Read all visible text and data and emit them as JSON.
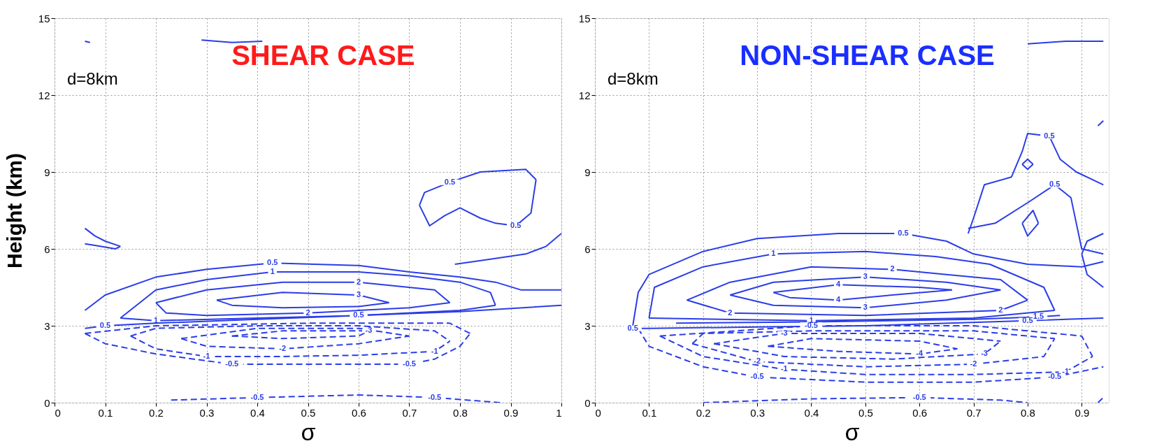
{
  "chart_data": [
    {
      "type": "line",
      "title": "SHEAR CASE",
      "xlabel": "σ",
      "ylabel": "Height (km)",
      "xlim": [
        0,
        1
      ],
      "ylim": [
        0,
        15
      ],
      "xticks": [
        0,
        0.1,
        0.2,
        0.3,
        0.4,
        0.5,
        0.6,
        0.7,
        0.8,
        0.9,
        1
      ],
      "yticks": [
        0,
        3,
        6,
        9,
        12,
        15
      ],
      "grid": true,
      "annotations": [
        "d=8km",
        {
          "text": "0.5",
          "x": 0.78,
          "y": 8.6
        },
        {
          "text": "0.5",
          "x": 0.91,
          "y": 6.9
        },
        {
          "text": "0.5",
          "x": 0.43,
          "y": 5.45
        },
        {
          "text": "1",
          "x": 0.43,
          "y": 5.1
        },
        {
          "text": "2",
          "x": 0.6,
          "y": 4.7
        },
        {
          "text": "3",
          "x": 0.6,
          "y": 4.2
        },
        {
          "text": "2",
          "x": 0.5,
          "y": 3.5
        },
        {
          "text": "0.5",
          "x": 0.1,
          "y": 3.0
        },
        {
          "text": "1",
          "x": 0.2,
          "y": 3.2
        },
        {
          "text": "0.5",
          "x": 0.6,
          "y": 3.4
        },
        {
          "text": "-3",
          "x": 0.62,
          "y": 2.8
        },
        {
          "text": "-2",
          "x": 0.45,
          "y": 2.1
        },
        {
          "text": "-1",
          "x": 0.3,
          "y": 1.8
        },
        {
          "text": "-1",
          "x": 0.75,
          "y": 2.0
        },
        {
          "text": "-0.5",
          "x": 0.35,
          "y": 1.5
        },
        {
          "text": "-0.5",
          "x": 0.7,
          "y": 1.5
        },
        {
          "text": "-0.5",
          "x": 0.4,
          "y": 0.2
        },
        {
          "text": "-0.5",
          "x": 0.75,
          "y": 0.2
        }
      ],
      "series": [
        {
          "color": "#2b3de8",
          "line_style": "solid",
          "x": [
            0.72,
            0.73,
            0.78,
            0.84,
            0.93,
            0.95
          ],
          "values": [
            7.7,
            8.2,
            8.6,
            9.0,
            9.1,
            8.7
          ]
        },
        {
          "color": "#2b3de8",
          "line_style": "solid",
          "x": [
            0.72,
            0.74,
            0.77,
            0.8,
            0.84,
            0.87,
            0.91,
            0.94,
            0.95
          ],
          "values": [
            7.7,
            6.9,
            7.3,
            7.6,
            7.2,
            7.0,
            6.9,
            7.4,
            8.7
          ]
        },
        {
          "color": "#2b3de8",
          "line_style": "solid",
          "x": [
            0.06,
            0.08,
            0.1,
            0.13
          ],
          "values": [
            6.8,
            6.5,
            6.3,
            6.1
          ]
        },
        {
          "color": "#2b3de8",
          "line_style": "solid",
          "x": [
            0.06,
            0.09,
            0.12,
            0.13
          ],
          "values": [
            6.2,
            6.1,
            6.0,
            6.1
          ]
        },
        {
          "color": "#2b3de8",
          "line_style": "solid",
          "x": [
            0.29,
            0.35,
            0.41
          ],
          "values": [
            14.15,
            14.05,
            14.1
          ]
        },
        {
          "color": "#2b3de8",
          "line_style": "solid",
          "x": [
            0.06,
            0.07
          ],
          "values": [
            14.1,
            14.05
          ]
        },
        {
          "color": "#2b3de8",
          "line_style": "solid",
          "x": [
            0.79,
            0.86,
            0.93,
            0.97,
            1.0
          ],
          "values": [
            5.4,
            5.6,
            5.8,
            6.1,
            6.6
          ]
        },
        {
          "color": "#2b3de8",
          "line_style": "solid",
          "x": [
            0.06,
            0.1,
            0.2,
            0.3,
            0.43,
            0.6,
            0.7,
            0.8,
            0.87,
            0.92,
            1.0
          ],
          "values": [
            3.6,
            4.2,
            4.9,
            5.2,
            5.45,
            5.35,
            5.1,
            4.9,
            4.7,
            4.4,
            4.4
          ]
        },
        {
          "color": "#2b3de8",
          "line_style": "solid",
          "x": [
            0.06,
            0.1,
            0.2,
            0.4,
            0.6,
            0.8,
            1.0
          ],
          "values": [
            2.9,
            3.0,
            3.1,
            3.25,
            3.4,
            3.55,
            3.8
          ]
        },
        {
          "color": "#2b3de8",
          "line_style": "solid",
          "x": [
            0.13,
            0.2,
            0.3,
            0.43,
            0.6,
            0.7,
            0.8,
            0.86,
            0.87
          ],
          "values": [
            3.3,
            4.4,
            4.8,
            5.1,
            5.1,
            4.95,
            4.7,
            4.3,
            3.8
          ]
        },
        {
          "color": "#2b3de8",
          "line_style": "solid",
          "x": [
            0.13,
            0.2,
            0.4,
            0.6,
            0.8,
            0.87
          ],
          "values": [
            3.3,
            3.2,
            3.3,
            3.4,
            3.6,
            3.8
          ]
        },
        {
          "color": "#2b3de8",
          "line_style": "solid",
          "x": [
            0.2,
            0.3,
            0.45,
            0.6,
            0.75,
            0.78
          ],
          "values": [
            3.9,
            4.4,
            4.7,
            4.7,
            4.4,
            3.9
          ]
        },
        {
          "color": "#2b3de8",
          "line_style": "solid",
          "x": [
            0.2,
            0.22,
            0.3,
            0.5,
            0.7,
            0.78
          ],
          "values": [
            3.9,
            3.5,
            3.4,
            3.5,
            3.7,
            3.9
          ]
        },
        {
          "color": "#2b3de8",
          "line_style": "solid",
          "x": [
            0.32,
            0.45,
            0.6,
            0.66
          ],
          "values": [
            4.0,
            4.3,
            4.2,
            3.9
          ]
        },
        {
          "color": "#2b3de8",
          "line_style": "solid",
          "x": [
            0.32,
            0.35,
            0.45,
            0.6,
            0.66
          ],
          "values": [
            4.0,
            3.8,
            3.7,
            3.75,
            3.9
          ]
        },
        {
          "color": "#2b3de8",
          "line_style": "dashed",
          "x": [
            0.06,
            0.1,
            0.2,
            0.35,
            0.55,
            0.7,
            0.75,
            0.8,
            0.82
          ],
          "values": [
            2.7,
            2.3,
            1.9,
            1.5,
            1.5,
            1.5,
            1.7,
            2.2,
            2.7
          ]
        },
        {
          "color": "#2b3de8",
          "line_style": "dashed",
          "x": [
            0.06,
            0.2,
            0.5,
            0.78,
            0.82
          ],
          "values": [
            2.7,
            3.0,
            3.1,
            3.1,
            2.7
          ]
        },
        {
          "color": "#2b3de8",
          "line_style": "dashed",
          "x": [
            0.15,
            0.2,
            0.3,
            0.45,
            0.6,
            0.75,
            0.78
          ],
          "values": [
            2.6,
            2.1,
            1.8,
            1.8,
            1.85,
            2.0,
            2.4
          ]
        },
        {
          "color": "#2b3de8",
          "line_style": "dashed",
          "x": [
            0.15,
            0.2,
            0.4,
            0.6,
            0.75,
            0.78
          ],
          "values": [
            2.6,
            2.9,
            3.0,
            3.0,
            2.8,
            2.4
          ]
        },
        {
          "color": "#2b3de8",
          "line_style": "dashed",
          "x": [
            0.25,
            0.3,
            0.45,
            0.6,
            0.7
          ],
          "values": [
            2.5,
            2.2,
            2.1,
            2.3,
            2.6
          ]
        },
        {
          "color": "#2b3de8",
          "line_style": "dashed",
          "x": [
            0.25,
            0.4,
            0.6,
            0.7
          ],
          "values": [
            2.5,
            2.9,
            2.9,
            2.6
          ]
        },
        {
          "color": "#2b3de8",
          "line_style": "dashed",
          "x": [
            0.35,
            0.45,
            0.6,
            0.62
          ],
          "values": [
            2.6,
            2.5,
            2.6,
            2.8
          ]
        },
        {
          "color": "#2b3de8",
          "line_style": "dashed",
          "x": [
            0.35,
            0.45,
            0.62
          ],
          "values": [
            2.6,
            2.8,
            2.8
          ]
        },
        {
          "color": "#2b3de8",
          "line_style": "dashed",
          "x": [
            0.23,
            0.4,
            0.6,
            0.75,
            0.88
          ],
          "values": [
            0.1,
            0.2,
            0.3,
            0.2,
            0.0
          ]
        }
      ]
    },
    {
      "type": "line",
      "title": "NON-SHEAR CASE",
      "xlabel": "σ",
      "xlim": [
        0,
        0.95
      ],
      "ylim": [
        0,
        15
      ],
      "xticks": [
        0,
        0.1,
        0.2,
        0.3,
        0.4,
        0.5,
        0.6,
        0.7,
        0.8,
        0.9
      ],
      "yticks": [
        0,
        3,
        6,
        9,
        12,
        15
      ],
      "grid": true,
      "annotations": [
        "d=8km",
        {
          "text": "0.5",
          "x": 0.84,
          "y": 10.4
        },
        {
          "text": "0.5",
          "x": 0.85,
          "y": 8.5
        },
        {
          "text": "0.5",
          "x": 0.57,
          "y": 6.6
        },
        {
          "text": "1",
          "x": 0.33,
          "y": 5.8
        },
        {
          "text": "2",
          "x": 0.55,
          "y": 5.2
        },
        {
          "text": "3",
          "x": 0.5,
          "y": 4.9
        },
        {
          "text": "4",
          "x": 0.45,
          "y": 4.6
        },
        {
          "text": "4",
          "x": 0.45,
          "y": 4.0
        },
        {
          "text": "3",
          "x": 0.5,
          "y": 3.7
        },
        {
          "text": "2",
          "x": 0.25,
          "y": 3.5
        },
        {
          "text": "1",
          "x": 0.4,
          "y": 3.2
        },
        {
          "text": "0.5",
          "x": 0.07,
          "y": 2.9
        },
        {
          "text": "2",
          "x": 0.75,
          "y": 3.6
        },
        {
          "text": "1.5",
          "x": 0.82,
          "y": 3.35
        },
        {
          "text": "0.5",
          "x": 0.8,
          "y": 3.2
        },
        {
          "text": "-0.5",
          "x": 0.4,
          "y": 3.0
        },
        {
          "text": "-3",
          "x": 0.35,
          "y": 2.7
        },
        {
          "text": "-4",
          "x": 0.6,
          "y": 1.9
        },
        {
          "text": "-3",
          "x": 0.72,
          "y": 1.9
        },
        {
          "text": "-2",
          "x": 0.7,
          "y": 1.5
        },
        {
          "text": "-2",
          "x": 0.3,
          "y": 1.6
        },
        {
          "text": "-1",
          "x": 0.35,
          "y": 1.3
        },
        {
          "text": "-0.5",
          "x": 0.3,
          "y": 1.0
        },
        {
          "text": "-1",
          "x": 0.87,
          "y": 1.2
        },
        {
          "text": "-0.5",
          "x": 0.85,
          "y": 1.0
        },
        {
          "text": "-0.5",
          "x": 0.6,
          "y": 0.2
        }
      ],
      "series": [
        {
          "color": "#2b3de8",
          "line_style": "solid",
          "x": [
            0.07,
            0.08,
            0.1,
            0.2,
            0.3,
            0.45,
            0.57,
            0.65,
            0.7,
            0.8,
            0.9,
            0.94
          ],
          "values": [
            3.0,
            4.3,
            5.0,
            5.9,
            6.4,
            6.6,
            6.6,
            6.3,
            5.8,
            5.4,
            5.3,
            5.5
          ]
        },
        {
          "color": "#2b3de8",
          "line_style": "solid",
          "x": [
            0.07,
            0.1,
            0.3,
            0.5,
            0.8,
            0.94
          ],
          "values": [
            2.9,
            2.9,
            2.95,
            3.0,
            3.2,
            3.3
          ]
        },
        {
          "color": "#2b3de8",
          "line_style": "solid",
          "x": [
            0.1,
            0.11,
            0.2,
            0.33,
            0.5,
            0.63,
            0.73,
            0.83,
            0.85
          ],
          "values": [
            3.3,
            4.5,
            5.3,
            5.8,
            5.9,
            5.7,
            5.4,
            4.5,
            3.6
          ]
        },
        {
          "color": "#2b3de8",
          "line_style": "solid",
          "x": [
            0.1,
            0.4,
            0.7,
            0.85
          ],
          "values": [
            3.3,
            3.2,
            3.3,
            3.6
          ]
        },
        {
          "color": "#2b3de8",
          "line_style": "solid",
          "x": [
            0.17,
            0.25,
            0.4,
            0.55,
            0.65,
            0.75,
            0.8
          ],
          "values": [
            4.0,
            4.7,
            5.3,
            5.2,
            5.0,
            4.8,
            4.0
          ]
        },
        {
          "color": "#2b3de8",
          "line_style": "solid",
          "x": [
            0.17,
            0.25,
            0.5,
            0.75,
            0.8
          ],
          "values": [
            4.0,
            3.5,
            3.4,
            3.6,
            4.0
          ]
        },
        {
          "color": "#2b3de8",
          "line_style": "solid",
          "x": [
            0.25,
            0.33,
            0.5,
            0.65,
            0.75
          ],
          "values": [
            4.2,
            4.7,
            4.9,
            4.7,
            4.4
          ]
        },
        {
          "color": "#2b3de8",
          "line_style": "solid",
          "x": [
            0.25,
            0.33,
            0.5,
            0.65,
            0.75
          ],
          "values": [
            4.2,
            3.8,
            3.7,
            4.0,
            4.4
          ]
        },
        {
          "color": "#2b3de8",
          "line_style": "solid",
          "x": [
            0.33,
            0.45,
            0.6,
            0.66
          ],
          "values": [
            4.3,
            4.6,
            4.5,
            4.4
          ]
        },
        {
          "color": "#2b3de8",
          "line_style": "solid",
          "x": [
            0.33,
            0.36,
            0.45,
            0.55,
            0.66
          ],
          "values": [
            4.3,
            4.1,
            4.0,
            4.2,
            4.4
          ]
        },
        {
          "color": "#2b3de8",
          "line_style": "solid",
          "x": [
            0.69,
            0.7,
            0.72,
            0.77,
            0.79,
            0.8,
            0.84,
            0.86,
            0.89,
            0.94
          ],
          "values": [
            6.6,
            7.2,
            8.5,
            8.8,
            9.8,
            10.5,
            10.4,
            9.5,
            9.0,
            8.5
          ]
        },
        {
          "color": "#2b3de8",
          "line_style": "solid",
          "x": [
            0.69,
            0.74,
            0.8,
            0.85,
            0.88,
            0.89,
            0.9,
            0.94
          ],
          "values": [
            6.8,
            7.0,
            7.8,
            8.5,
            8.0,
            7.0,
            6.0,
            5.8
          ]
        },
        {
          "color": "#2b3de8",
          "line_style": "solid",
          "x": [
            0.79,
            0.8,
            0.81
          ],
          "values": [
            9.3,
            9.5,
            9.3
          ]
        },
        {
          "color": "#2b3de8",
          "line_style": "solid",
          "x": [
            0.79,
            0.8,
            0.81
          ],
          "values": [
            9.3,
            9.1,
            9.3
          ]
        },
        {
          "color": "#2b3de8",
          "line_style": "solid",
          "x": [
            0.79,
            0.81,
            0.82
          ],
          "values": [
            7.0,
            7.5,
            7.0
          ]
        },
        {
          "color": "#2b3de8",
          "line_style": "solid",
          "x": [
            0.79,
            0.8,
            0.82
          ],
          "values": [
            7.0,
            6.5,
            7.0
          ]
        },
        {
          "color": "#2b3de8",
          "line_style": "solid",
          "x": [
            0.8,
            0.87,
            0.94
          ],
          "values": [
            14.0,
            14.1,
            14.1
          ]
        },
        {
          "color": "#2b3de8",
          "line_style": "solid",
          "x": [
            0.93,
            0.94
          ],
          "values": [
            10.8,
            11.0
          ]
        },
        {
          "color": "#2b3de8",
          "line_style": "solid",
          "x": [
            0.9,
            0.91,
            0.94
          ],
          "values": [
            5.8,
            6.3,
            6.6
          ]
        },
        {
          "color": "#2b3de8",
          "line_style": "solid",
          "x": [
            0.9,
            0.91,
            0.94
          ],
          "values": [
            5.8,
            5.0,
            4.5
          ]
        },
        {
          "color": "#2b3de8",
          "line_style": "solid",
          "x": [
            0.15,
            0.4,
            0.7,
            0.82,
            0.86
          ],
          "values": [
            3.1,
            3.15,
            3.25,
            3.35,
            3.4
          ]
        },
        {
          "color": "#2b3de8",
          "line_style": "dashed",
          "x": [
            0.08,
            0.1,
            0.2,
            0.3,
            0.5,
            0.7,
            0.85,
            0.94
          ],
          "values": [
            2.9,
            2.2,
            1.4,
            1.0,
            0.8,
            0.8,
            1.0,
            1.4
          ]
        },
        {
          "color": "#2b3de8",
          "line_style": "dashed",
          "x": [
            0.12,
            0.2,
            0.35,
            0.5,
            0.7,
            0.87,
            0.92
          ],
          "values": [
            2.6,
            1.8,
            1.3,
            1.1,
            1.1,
            1.2,
            1.8
          ]
        },
        {
          "color": "#2b3de8",
          "line_style": "dashed",
          "x": [
            0.12,
            0.4,
            0.7,
            0.9,
            0.92
          ],
          "values": [
            2.6,
            3.0,
            3.0,
            2.6,
            1.8
          ]
        },
        {
          "color": "#2b3de8",
          "line_style": "dashed",
          "x": [
            0.18,
            0.3,
            0.5,
            0.7,
            0.83,
            0.85
          ],
          "values": [
            2.3,
            1.6,
            1.4,
            1.5,
            1.8,
            2.5
          ]
        },
        {
          "color": "#2b3de8",
          "line_style": "dashed",
          "x": [
            0.18,
            0.2,
            0.4,
            0.7,
            0.85
          ],
          "values": [
            2.3,
            2.7,
            2.8,
            2.8,
            2.5
          ]
        },
        {
          "color": "#2b3de8",
          "line_style": "dashed",
          "x": [
            0.22,
            0.35,
            0.55,
            0.72,
            0.75
          ],
          "values": [
            2.3,
            1.8,
            1.7,
            1.9,
            2.4
          ]
        },
        {
          "color": "#2b3de8",
          "line_style": "dashed",
          "x": [
            0.22,
            0.35,
            0.6,
            0.75
          ],
          "values": [
            2.3,
            2.7,
            2.7,
            2.4
          ]
        },
        {
          "color": "#2b3de8",
          "line_style": "dashed",
          "x": [
            0.32,
            0.45,
            0.6,
            0.67
          ],
          "values": [
            2.2,
            2.0,
            1.9,
            2.1
          ]
        },
        {
          "color": "#2b3de8",
          "line_style": "dashed",
          "x": [
            0.32,
            0.4,
            0.6,
            0.67
          ],
          "values": [
            2.2,
            2.5,
            2.4,
            2.1
          ]
        },
        {
          "color": "#2b3de8",
          "line_style": "dashed",
          "x": [
            0.2,
            0.4,
            0.6,
            0.75,
            0.8
          ],
          "values": [
            0.0,
            0.15,
            0.2,
            0.1,
            0.0
          ]
        },
        {
          "color": "#2b3de8",
          "line_style": "dashed",
          "x": [
            0.93,
            0.94
          ],
          "values": [
            0.0,
            0.2
          ]
        }
      ]
    }
  ]
}
